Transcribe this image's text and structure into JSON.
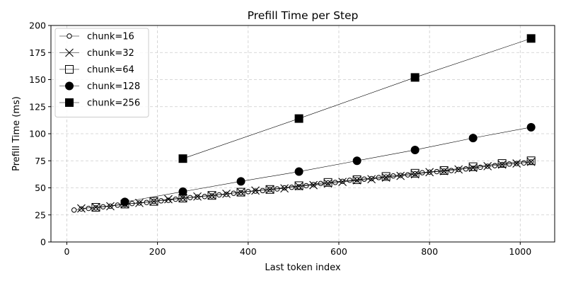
{
  "chart_data": {
    "type": "line",
    "title": "Prefill Time per Step",
    "xlabel": "Last token index",
    "ylabel": "Prefill Time (ms)",
    "xlim": [
      -35,
      1076
    ],
    "ylim": [
      0,
      200
    ],
    "xticks": [
      0,
      200,
      400,
      600,
      800,
      1000
    ],
    "yticks": [
      0,
      25,
      50,
      75,
      100,
      125,
      150,
      175,
      200
    ],
    "grid": true,
    "legend_position": "top-left",
    "series": [
      {
        "name": "chunk=16",
        "marker": "open-circle",
        "x": [
          16,
          32,
          48,
          64,
          80,
          96,
          112,
          128,
          144,
          160,
          176,
          192,
          208,
          224,
          240,
          256,
          272,
          288,
          304,
          320,
          336,
          352,
          368,
          384,
          400,
          416,
          432,
          448,
          464,
          480,
          496,
          512,
          528,
          544,
          560,
          576,
          592,
          608,
          624,
          640,
          656,
          672,
          688,
          704,
          720,
          736,
          752,
          768,
          784,
          800,
          816,
          832,
          848,
          864,
          880,
          896,
          912,
          928,
          944,
          960,
          976,
          992,
          1008,
          1024
        ],
        "y": [
          29.5,
          30.5,
          31.0,
          31.5,
          32.5,
          33.0,
          34.0,
          34.5,
          35.5,
          36.0,
          36.5,
          37.5,
          38.0,
          38.5,
          39.5,
          40.0,
          41.0,
          41.5,
          42.0,
          42.5,
          43.5,
          44.0,
          45.0,
          45.5,
          46.5,
          47.0,
          47.5,
          48.5,
          49.0,
          50.0,
          50.5,
          51.0,
          52.0,
          53.0,
          54.0,
          54.5,
          55.0,
          56.0,
          57.0,
          57.5,
          58.0,
          58.5,
          59.5,
          60.0,
          61.0,
          61.5,
          62.0,
          63.0,
          64.0,
          64.5,
          65.0,
          65.5,
          66.0,
          67.0,
          67.5,
          68.0,
          69.0,
          70.0,
          70.5,
          71.5,
          72.0,
          72.5,
          73.0,
          74.0
        ]
      },
      {
        "name": "chunk=32",
        "marker": "x",
        "x": [
          32,
          64,
          96,
          128,
          160,
          192,
          224,
          256,
          288,
          320,
          352,
          384,
          416,
          448,
          480,
          512,
          544,
          576,
          608,
          640,
          672,
          704,
          736,
          768,
          800,
          832,
          864,
          896,
          928,
          960,
          992,
          1024
        ],
        "y": [
          31.0,
          32.0,
          33.0,
          35.0,
          36.0,
          37.5,
          39.5,
          40.5,
          42.0,
          43.0,
          44.5,
          46.0,
          47.5,
          48.5,
          49.5,
          51.5,
          52.5,
          54.0,
          55.5,
          57.0,
          58.0,
          59.5,
          61.0,
          62.5,
          64.5,
          65.5,
          67.0,
          68.5,
          70.0,
          71.5,
          72.5,
          74.0
        ]
      },
      {
        "name": "chunk=64",
        "marker": "open-square",
        "x": [
          64,
          128,
          192,
          256,
          320,
          384,
          448,
          512,
          576,
          640,
          704,
          768,
          832,
          896,
          960,
          1024
        ],
        "y": [
          32.0,
          35.0,
          37.5,
          40.5,
          43.0,
          46.0,
          48.5,
          52.0,
          55.0,
          57.5,
          60.5,
          63.5,
          66.0,
          69.5,
          72.5,
          75.0
        ]
      },
      {
        "name": "chunk=128",
        "marker": "filled-circle",
        "x": [
          128,
          256,
          384,
          512,
          640,
          768,
          896,
          1024
        ],
        "y": [
          37.0,
          46.5,
          56.0,
          65.0,
          75.0,
          85.0,
          96.0,
          106.0
        ]
      },
      {
        "name": "chunk=256",
        "marker": "filled-square",
        "x": [
          256,
          512,
          768,
          1024
        ],
        "y": [
          77.0,
          114.0,
          152.0,
          188.0
        ]
      }
    ]
  }
}
